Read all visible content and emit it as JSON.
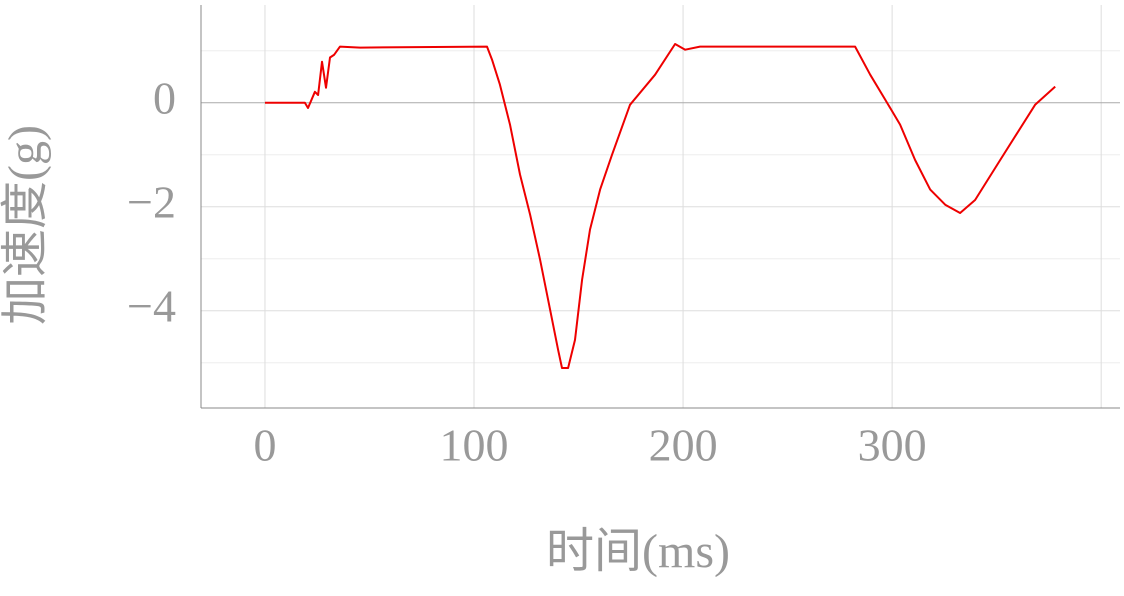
{
  "chart_data": {
    "type": "line",
    "xlabel": "时间(ms)",
    "ylabel": "加速度(g)",
    "xlim": [
      -30.6,
      409
    ],
    "ylim": [
      -5.87,
      1.88
    ],
    "xticks": [
      0,
      100,
      200,
      300
    ],
    "xgrid": [
      0,
      100,
      200,
      300,
      400
    ],
    "yticks": [
      0,
      {
        "value": -2,
        "label": "−2"
      },
      {
        "value": -4,
        "label": "−4"
      }
    ],
    "minor_yticks": [
      1,
      -1,
      -3,
      -5
    ],
    "grid": true,
    "series": [
      {
        "name": "加速度",
        "color": "#ee0000",
        "x": [
          0,
          19.1,
          20.6,
          23.9,
          25.4,
          27.3,
          29.2,
          31.1,
          33,
          35.9,
          45.5,
          106.2,
          108.6,
          112.4,
          117.2,
          122,
          126.8,
          131.6,
          136.4,
          140.2,
          142.1,
          145,
          148.3,
          151.7,
          155.5,
          160.3,
          166,
          174.6,
          186.6,
          196.2,
          201,
          208.1,
          282.3,
          289.5,
          296.7,
          303.8,
          311,
          318.2,
          325.4,
          332.5,
          339.7,
          351.7,
          368.4,
          378
        ],
        "values": [
          0,
          0,
          -0.1,
          0.21,
          0.15,
          0.79,
          0.29,
          0.87,
          0.92,
          1.08,
          1.06,
          1.08,
          0.83,
          0.35,
          -0.42,
          -1.38,
          -2.15,
          -3.02,
          -3.98,
          -4.75,
          -5.1,
          -5.1,
          -4.56,
          -3.4,
          -2.44,
          -1.67,
          -1.0,
          -0.04,
          0.54,
          1.13,
          1.02,
          1.08,
          1.08,
          0.54,
          0.06,
          -0.42,
          -1.1,
          -1.67,
          -1.96,
          -2.12,
          -1.87,
          -1.1,
          -0.04,
          0.31
        ]
      }
    ]
  }
}
